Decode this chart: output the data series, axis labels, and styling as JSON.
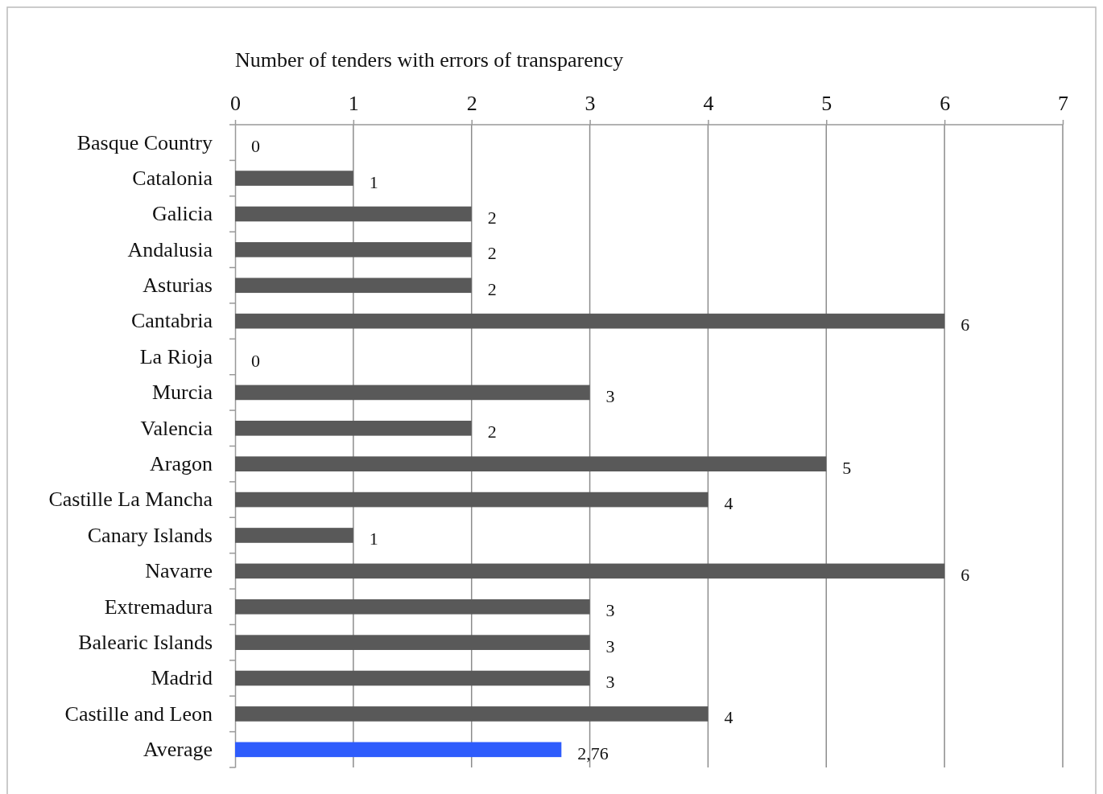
{
  "chart_data": {
    "type": "bar",
    "orientation": "horizontal",
    "xlabel": "Number of tenders with errors of transparency",
    "categories": [
      "Basque Country",
      "Catalonia",
      "Galicia",
      "Andalusia",
      "Asturias",
      "Cantabria",
      "La Rioja",
      "Murcia",
      "Valencia",
      "Aragon",
      "Castille La Mancha",
      "Canary Islands",
      "Navarre",
      "Extremadura",
      "Balearic Islands",
      "Madrid",
      "Castille and Leon",
      "Average"
    ],
    "values": [
      0,
      1,
      2,
      2,
      2,
      6,
      0,
      3,
      2,
      5,
      4,
      1,
      6,
      3,
      3,
      3,
      4,
      2.76
    ],
    "colors": [
      "#595959",
      "#595959",
      "#595959",
      "#595959",
      "#595959",
      "#595959",
      "#595959",
      "#595959",
      "#595959",
      "#595959",
      "#595959",
      "#595959",
      "#595959",
      "#595959",
      "#595959",
      "#595959",
      "#595959",
      "#2e5cfc"
    ],
    "value_labels": [
      "0",
      "1",
      "2",
      "2",
      "2",
      "6",
      "0",
      "3",
      "2",
      "5",
      "4",
      "1",
      "6",
      "3",
      "3",
      "3",
      "4",
      "2,76"
    ],
    "xlim": [
      0,
      7
    ],
    "xticks": [
      0,
      1,
      2,
      3,
      4,
      5,
      6,
      7
    ],
    "grid": "x"
  }
}
